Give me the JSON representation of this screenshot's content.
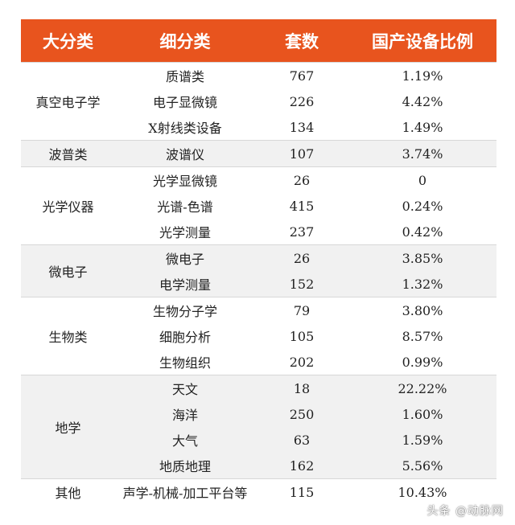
{
  "colors": {
    "header_bg": "#e8541e",
    "header_text": "#ffffff",
    "shaded_row_bg": "#f1f1f1",
    "plain_row_bg": "#ffffff",
    "text": "#222222"
  },
  "table": {
    "headers": [
      "大分类",
      "细分类",
      "套数",
      "国产设备比例"
    ],
    "groups": [
      {
        "category": "真空电子学",
        "shaded": false,
        "rows": [
          {
            "sub": "质谱类",
            "count": "767",
            "ratio": "1.19%"
          },
          {
            "sub": "电子显微镜",
            "count": "226",
            "ratio": "4.42%"
          },
          {
            "sub": "X射线类设备",
            "count": "134",
            "ratio": "1.49%"
          }
        ]
      },
      {
        "category": "波普类",
        "shaded": true,
        "rows": [
          {
            "sub": "波谱仪",
            "count": "107",
            "ratio": "3.74%"
          }
        ]
      },
      {
        "category": "光学仪器",
        "shaded": false,
        "rows": [
          {
            "sub": "光学显微镜",
            "count": "26",
            "ratio": "0"
          },
          {
            "sub": "光谱-色谱",
            "count": "415",
            "ratio": "0.24%"
          },
          {
            "sub": "光学测量",
            "count": "237",
            "ratio": "0.42%"
          }
        ]
      },
      {
        "category": "微电子",
        "shaded": true,
        "rows": [
          {
            "sub": "微电子",
            "count": "26",
            "ratio": "3.85%"
          },
          {
            "sub": "电学测量",
            "count": "152",
            "ratio": "1.32%"
          }
        ]
      },
      {
        "category": "生物类",
        "shaded": false,
        "rows": [
          {
            "sub": "生物分子学",
            "count": "79",
            "ratio": "3.80%"
          },
          {
            "sub": "细胞分析",
            "count": "105",
            "ratio": "8.57%"
          },
          {
            "sub": "生物组织",
            "count": "202",
            "ratio": "0.99%"
          }
        ]
      },
      {
        "category": "地学",
        "shaded": true,
        "rows": [
          {
            "sub": "天文",
            "count": "18",
            "ratio": "22.22%"
          },
          {
            "sub": "海洋",
            "count": "250",
            "ratio": "1.60%"
          },
          {
            "sub": "大气",
            "count": "63",
            "ratio": "1.59%"
          },
          {
            "sub": "地质地理",
            "count": "162",
            "ratio": "5.56%"
          }
        ]
      },
      {
        "category": "其他",
        "shaded": false,
        "rows": [
          {
            "sub": "声学-机械-加工平台等",
            "count": "115",
            "ratio": "10.43%"
          }
        ]
      }
    ]
  },
  "watermark": "头条 @动脉网"
}
